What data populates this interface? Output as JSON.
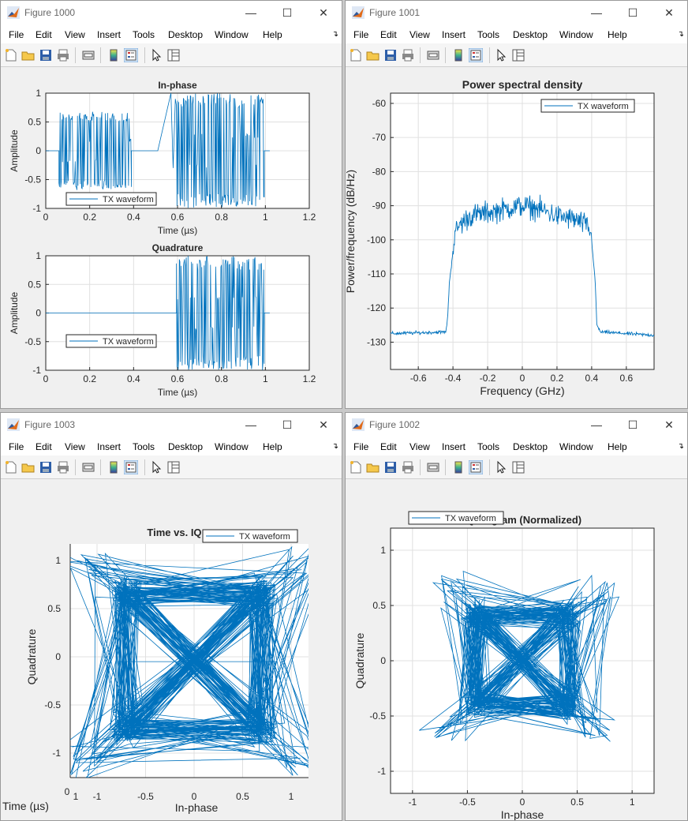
{
  "windows": [
    {
      "title": "Figure 1000",
      "axes": [
        {
          "title": "In-phase",
          "xlabel": "Time (µs)",
          "ylabel": "Amplitude",
          "legend": "TX waveform"
        },
        {
          "title": "Quadrature",
          "xlabel": "Time (µs)",
          "ylabel": "Amplitude",
          "legend": "TX waveform"
        }
      ]
    },
    {
      "title": "Figure 1001",
      "axes": [
        {
          "title": "Power spectral density",
          "xlabel": "Frequency (GHz)",
          "ylabel": "Power/frequency (dB/Hz)",
          "legend": "TX waveform"
        }
      ]
    },
    {
      "title": "Figure 1003",
      "axes": [
        {
          "title": "Time vs. IQ",
          "xlabel": "In-phase",
          "ylabel": "Quadrature",
          "zlabel": "Time (µs)",
          "legend": "TX waveform"
        }
      ]
    },
    {
      "title": "Figure 1002",
      "axes": [
        {
          "title": "IQ diagram (Normalized)",
          "xlabel": "In-phase",
          "ylabel": "Quadrature",
          "legend": "TX waveform"
        }
      ]
    }
  ],
  "menu": [
    "File",
    "Edit",
    "View",
    "Insert",
    "Tools",
    "Desktop",
    "Window",
    "Help"
  ],
  "colors": {
    "trace": "#0072bd",
    "grid": "#e0e0e0",
    "window_bg": "#f0f0f0"
  },
  "chart_data": [
    {
      "type": "line",
      "title": "In-phase",
      "xlabel": "Time (µs)",
      "ylabel": "Amplitude",
      "xlim": [
        0,
        1.2
      ],
      "ylim": [
        -1,
        1
      ],
      "xticks": [
        0,
        0.2,
        0.4,
        0.6,
        0.8,
        1,
        1.2
      ],
      "yticks": [
        -1,
        -0.5,
        0,
        0.5,
        1
      ],
      "series": [
        {
          "name": "TX waveform",
          "segments": [
            {
              "from": 0,
              "to": 0.06,
              "amp": 0
            },
            {
              "from": 0.06,
              "to": 0.39,
              "amp": 0.68
            },
            {
              "from": 0.39,
              "to": 0.51,
              "amp": 0
            },
            {
              "from": 0.51,
              "to": 0.57,
              "ramp": [
                0,
                1
              ]
            },
            {
              "from": 0.595,
              "to": 0.995,
              "amp": 1
            },
            {
              "from": 0.995,
              "to": 1.02,
              "amp": 0
            }
          ]
        }
      ],
      "legend": "bottom-left",
      "grid": true
    },
    {
      "type": "line",
      "title": "Quadrature",
      "xlabel": "Time (µs)",
      "ylabel": "Amplitude",
      "xlim": [
        0,
        1.2
      ],
      "ylim": [
        -1,
        1
      ],
      "xticks": [
        0,
        0.2,
        0.4,
        0.6,
        0.8,
        1,
        1.2
      ],
      "yticks": [
        -1,
        -0.5,
        0,
        0.5,
        1
      ],
      "series": [
        {
          "name": "TX waveform",
          "segments": [
            {
              "from": 0,
              "to": 0.595,
              "amp": 0
            },
            {
              "from": 0.595,
              "to": 0.995,
              "amp": 1
            },
            {
              "from": 0.995,
              "to": 1.02,
              "amp": 0
            }
          ]
        }
      ],
      "legend": "bottom-left",
      "grid": true
    },
    {
      "type": "line",
      "title": "Power spectral density",
      "xlabel": "Frequency (GHz)",
      "ylabel": "Power/frequency (dB/Hz)",
      "xlim": [
        -0.76,
        0.76
      ],
      "ylim": [
        -138,
        -57
      ],
      "xticks": [
        -0.6,
        -0.4,
        -0.2,
        0,
        0.2,
        0.4,
        0.6
      ],
      "yticks": [
        -130,
        -120,
        -110,
        -100,
        -90,
        -80,
        -70,
        -60
      ],
      "series": [
        {
          "name": "TX waveform",
          "points": [
            [
              -0.76,
              -127.5
            ],
            [
              -0.44,
              -127
            ],
            [
              -0.43,
              -122
            ],
            [
              -0.42,
              -112
            ],
            [
              -0.41,
              -108
            ],
            [
              -0.4,
              -103
            ],
            [
              -0.39,
              -99
            ],
            [
              -0.37,
              -96
            ],
            [
              -0.3,
              -93
            ],
            [
              -0.2,
              -92
            ],
            [
              -0.1,
              -91
            ],
            [
              0,
              -90
            ],
            [
              0.1,
              -91
            ],
            [
              0.2,
              -93
            ],
            [
              0.3,
              -94
            ],
            [
              0.38,
              -96
            ],
            [
              0.4,
              -100
            ],
            [
              0.42,
              -112
            ],
            [
              0.43,
              -125
            ],
            [
              0.45,
              -127
            ],
            [
              0.76,
              -128
            ]
          ]
        }
      ],
      "legend": "top-right",
      "grid": true
    },
    {
      "type": "line",
      "title": "Time vs. IQ",
      "xlabel": "In-phase",
      "ylabel": "Quadrature",
      "zlabel": "Time (µs)",
      "xticks": [
        -1,
        -0.5,
        0,
        0.5,
        1
      ],
      "yticks": [
        -1,
        -0.5,
        0,
        0.5,
        1
      ],
      "ztick_labels": [
        "0",
        "1"
      ],
      "series": [
        {
          "name": "TX waveform",
          "constellation": [
            [
              -0.7,
              0.65
            ],
            [
              0.7,
              0.65
            ],
            [
              -0.7,
              -0.75
            ],
            [
              0.7,
              -0.75
            ]
          ]
        }
      ],
      "legend": "top-right",
      "grid": true
    },
    {
      "type": "line",
      "title": "IQ diagram (Normalized)",
      "xlabel": "In-phase",
      "ylabel": "Quadrature",
      "xlim": [
        -1.2,
        1.2
      ],
      "ylim": [
        -1.2,
        1.2
      ],
      "xticks": [
        -1,
        -0.5,
        0,
        0.5,
        1
      ],
      "yticks": [
        -1,
        -0.5,
        0,
        0.5,
        1
      ],
      "series": [
        {
          "name": "TX waveform",
          "constellation": [
            [
              -0.42,
              0.42
            ],
            [
              0.42,
              0.42
            ],
            [
              -0.42,
              -0.38
            ],
            [
              0.42,
              -0.42
            ]
          ]
        }
      ],
      "legend": "top-left",
      "grid": true
    }
  ]
}
